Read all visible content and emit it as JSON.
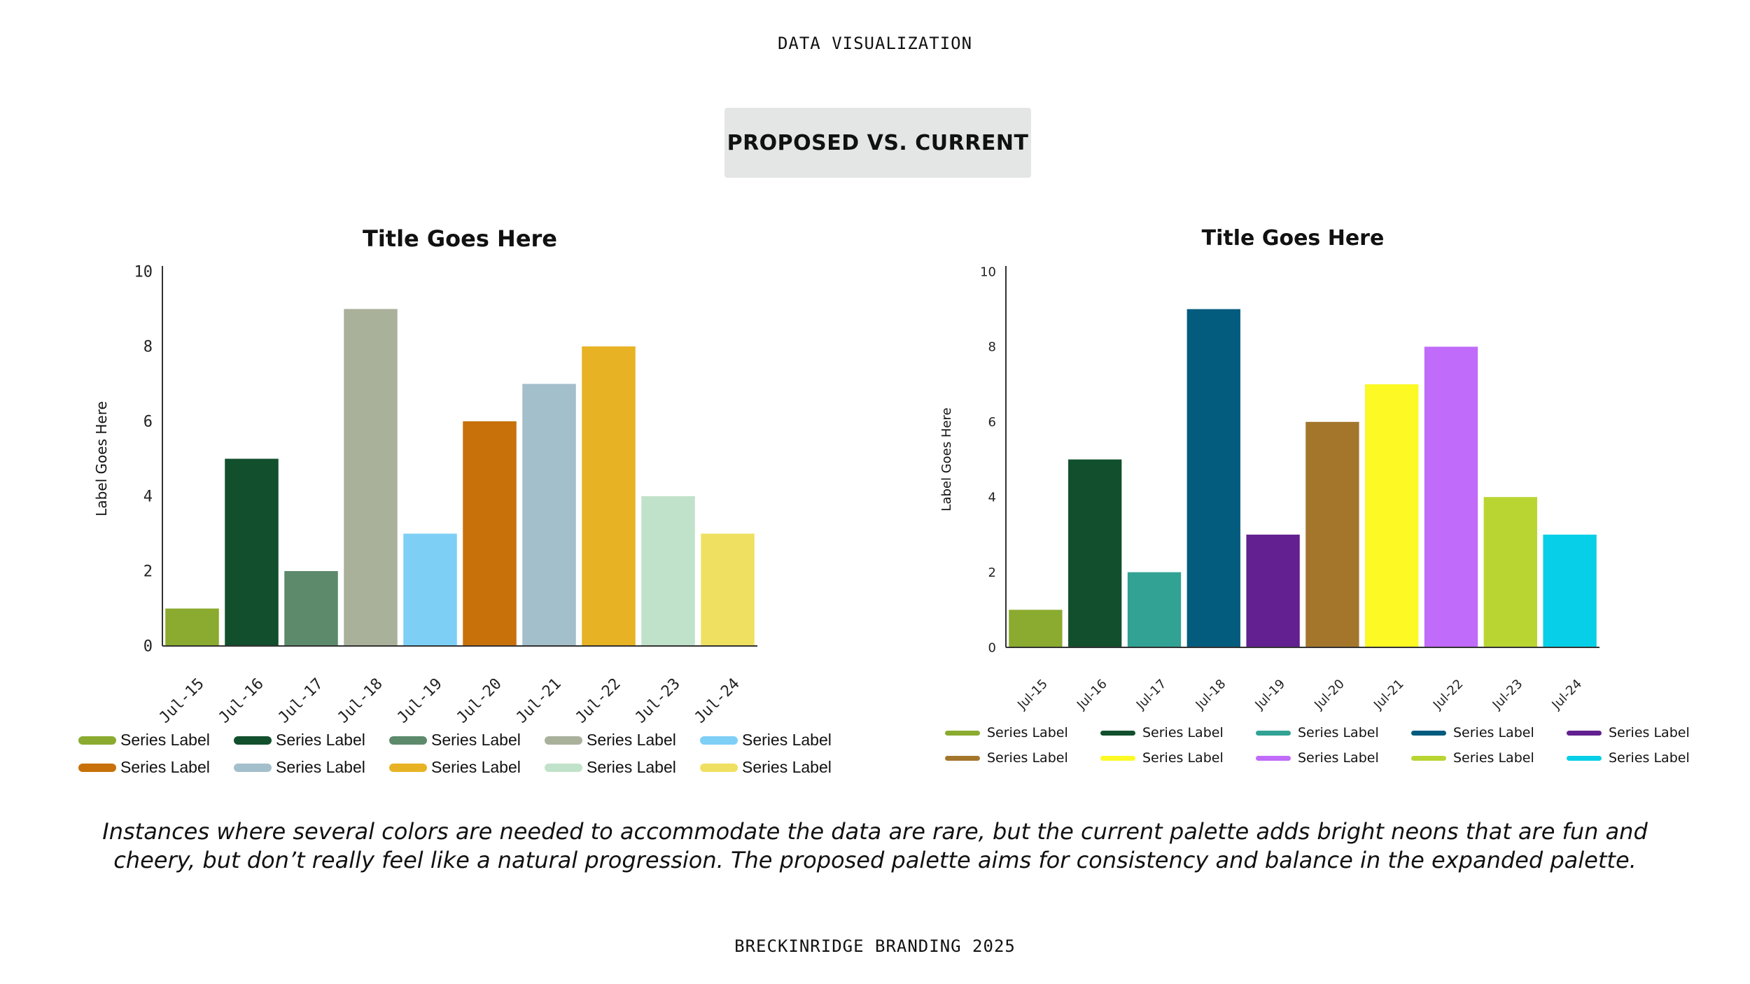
{
  "header": {
    "section": "DATA VISUALIZATION"
  },
  "badge": {
    "label": "PROPOSED VS. CURRENT"
  },
  "chart_data": [
    {
      "type": "bar",
      "palette_name": "proposed",
      "title": "Title Goes Here",
      "xlabel": "",
      "ylabel": "Label Goes Here",
      "ylim": [
        0,
        10
      ],
      "yticks": [
        0,
        2,
        4,
        6,
        8,
        10
      ],
      "categories": [
        "Jul-15",
        "Jul-16",
        "Jul-17",
        "Jul-18",
        "Jul-19",
        "Jul-20",
        "Jul-21",
        "Jul-22",
        "Jul-23",
        "Jul-24"
      ],
      "values": [
        1,
        5,
        2,
        9,
        3,
        6,
        7,
        8,
        4,
        3
      ],
      "colors": [
        "#8aab2f",
        "#124f2d",
        "#5c8a6b",
        "#aab19b",
        "#7dcff6",
        "#c8710a",
        "#a4bfcc",
        "#e7b324",
        "#c1e2ca",
        "#efe061"
      ],
      "legend": [
        {
          "label": "Series Label",
          "color": "#8aab2f"
        },
        {
          "label": "Series Label",
          "color": "#124f2d"
        },
        {
          "label": "Series Label",
          "color": "#5c8a6b"
        },
        {
          "label": "Series Label",
          "color": "#aab19b"
        },
        {
          "label": "Series Label",
          "color": "#7dcff6"
        },
        {
          "label": "Series Label",
          "color": "#c8710a"
        },
        {
          "label": "Series Label",
          "color": "#a4bfcc"
        },
        {
          "label": "Series Label",
          "color": "#e7b324"
        },
        {
          "label": "Series Label",
          "color": "#c1e2ca"
        },
        {
          "label": "Series Label",
          "color": "#efe061"
        }
      ]
    },
    {
      "type": "bar",
      "palette_name": "current",
      "title": "Title Goes Here",
      "xlabel": "",
      "ylabel": "Label Goes Here",
      "ylim": [
        0,
        10
      ],
      "yticks": [
        0,
        2,
        4,
        6,
        8,
        10
      ],
      "categories": [
        "Jul-15",
        "Jul-16",
        "Jul-17",
        "Jul-18",
        "Jul-19",
        "Jul-20",
        "Jul-21",
        "Jul-22",
        "Jul-23",
        "Jul-24"
      ],
      "values": [
        1,
        5,
        2,
        9,
        3,
        6,
        7,
        8,
        4,
        3
      ],
      "colors": [
        "#8aab2f",
        "#124f2d",
        "#31a293",
        "#035b7e",
        "#622090",
        "#a4762c",
        "#fcf924",
        "#c06bfa",
        "#b9d532",
        "#07cfe7"
      ],
      "legend": [
        {
          "label": "Series Label",
          "color": "#8aab2f"
        },
        {
          "label": "Series Label",
          "color": "#124f2d"
        },
        {
          "label": "Series Label",
          "color": "#31a293"
        },
        {
          "label": "Series Label",
          "color": "#035b7e"
        },
        {
          "label": "Series Label",
          "color": "#622090"
        },
        {
          "label": "Series Label",
          "color": "#a4762c"
        },
        {
          "label": "Series Label",
          "color": "#fcf924"
        },
        {
          "label": "Series Label",
          "color": "#c06bfa"
        },
        {
          "label": "Series Label",
          "color": "#b9d532"
        },
        {
          "label": "Series Label",
          "color": "#07cfe7"
        }
      ]
    }
  ],
  "caption": {
    "line1": "Instances where several colors are needed to accommodate the data are rare, but the current palette adds bright neons that are fun and",
    "line2": "cheery, but don’t really feel like a natural progression. The proposed palette aims for consistency and balance in the expanded palette."
  },
  "footer": {
    "text": "BRECKINRIDGE BRANDING 2025"
  }
}
